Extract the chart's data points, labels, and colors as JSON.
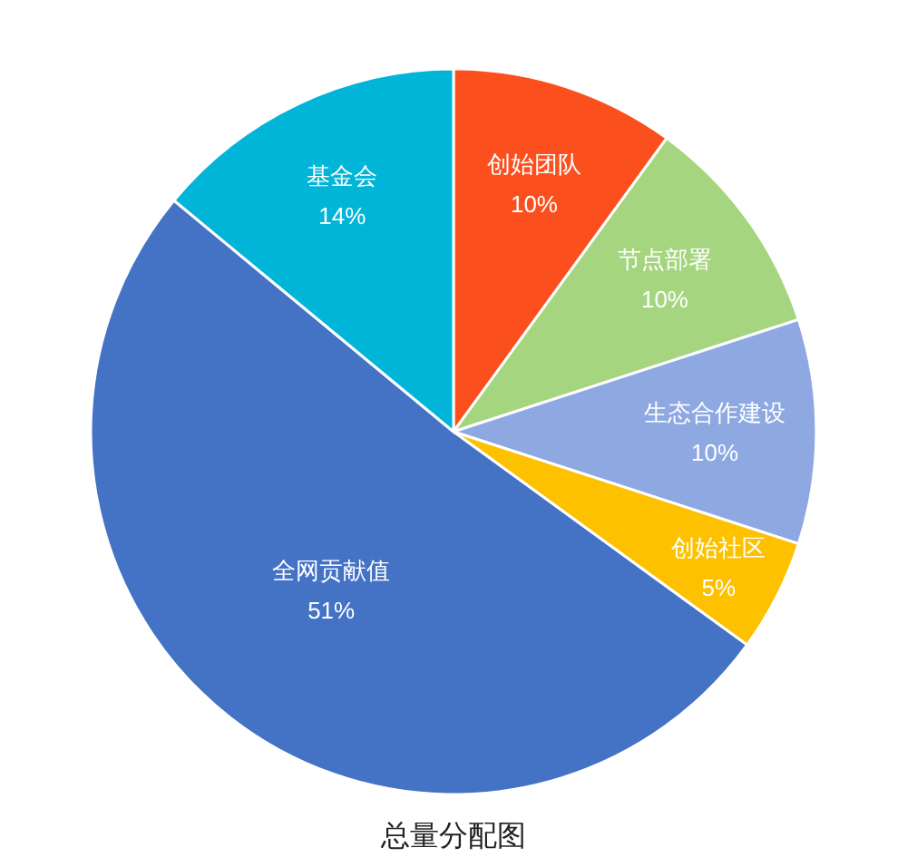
{
  "chart_data": {
    "type": "pie",
    "title": "总量分配图",
    "categories": [
      "创始团队",
      "节点部署",
      "生态合作建设",
      "创始社区",
      "全网贡献值",
      "基金会"
    ],
    "values": [
      10,
      10,
      10,
      5,
      51,
      14
    ],
    "colors": [
      "#fc4f1e",
      "#a5d67f",
      "#8ea9e1",
      "#fdc100",
      "#4472c4",
      "#00b5d8"
    ],
    "value_labels": [
      "10%",
      "10%",
      "10%",
      "5%",
      "51%",
      "14%"
    ]
  }
}
